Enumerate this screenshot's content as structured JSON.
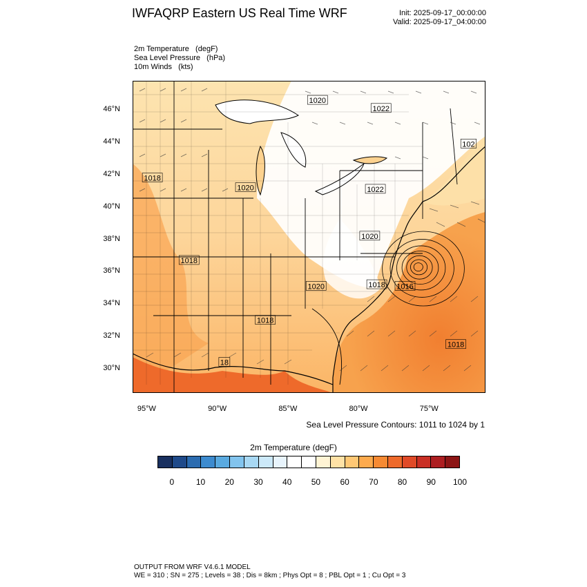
{
  "header": {
    "title": "IWFAQRP Eastern US Real Time WRF",
    "init": "Init: 2025-09-17_00:00:00",
    "valid": "Valid: 2025-09-17_04:00:00"
  },
  "fields": [
    "2m Temperature   (degF)",
    "Sea Level Pressure   (hPa)",
    "10m Winds   (kts)"
  ],
  "map": {
    "lon_range": [
      -96,
      -71
    ],
    "lat_range": [
      28.5,
      47.8
    ],
    "lat_labels": [
      "46°N",
      "44°N",
      "42°N",
      "40°N",
      "38°N",
      "36°N",
      "34°N",
      "32°N",
      "30°N"
    ],
    "lat_values": [
      46,
      44,
      42,
      40,
      38,
      36,
      34,
      32,
      30
    ],
    "lon_labels": [
      "95°W",
      "90°W",
      "85°W",
      "80°W",
      "75°W"
    ],
    "lon_values": [
      -95,
      -90,
      -85,
      -80,
      -75
    ],
    "pressure_labels": [
      {
        "text": "1020",
        "lon": -82.9,
        "lat": 46.6
      },
      {
        "text": "1022",
        "lon": -78.4,
        "lat": 46.1
      },
      {
        "text": "102",
        "lon": -72.2,
        "lat": 43.9
      },
      {
        "text": "1018",
        "lon": -94.6,
        "lat": 41.8
      },
      {
        "text": "1020",
        "lon": -88.0,
        "lat": 41.2
      },
      {
        "text": "1022",
        "lon": -78.8,
        "lat": 41.1
      },
      {
        "text": "1020",
        "lon": -79.2,
        "lat": 38.2
      },
      {
        "text": "1018",
        "lon": -92.0,
        "lat": 36.7
      },
      {
        "text": "1020",
        "lon": -83.0,
        "lat": 35.1
      },
      {
        "text": "1018",
        "lon": -78.7,
        "lat": 35.2
      },
      {
        "text": "1016",
        "lon": -76.7,
        "lat": 35.1
      },
      {
        "text": "1018",
        "lon": -86.6,
        "lat": 33.0
      },
      {
        "text": "18",
        "lon": -89.5,
        "lat": 30.4
      },
      {
        "text": "1018",
        "lon": -73.1,
        "lat": 31.5
      }
    ],
    "low_center": {
      "lon": -75.8,
      "lat": 36.3
    }
  },
  "contour_note": "Sea Level Pressure Contours: 1011 to 1024 by 1",
  "colorbar": {
    "title": "2m Temperature  (degF)",
    "colors": [
      "#19305f",
      "#1f4a8a",
      "#2c6cb0",
      "#3d8bcf",
      "#5aaae0",
      "#82c4ee",
      "#a8d8f3",
      "#cce9f9",
      "#e8f4fc",
      "#ffffff",
      "#ffffff",
      "#fff4d4",
      "#ffe2a6",
      "#ffc875",
      "#fdaa4d",
      "#f68a33",
      "#ee6a2b",
      "#e04a28",
      "#c92f25",
      "#ad1e21",
      "#8c1515"
    ],
    "tick_labels": [
      "0",
      "10",
      "20",
      "30",
      "40",
      "50",
      "60",
      "70",
      "80",
      "90",
      "100"
    ]
  },
  "footer": {
    "line1": "OUTPUT FROM WRF V4.6.1 MODEL",
    "line2": "WE = 310 ; SN = 275 ; Levels = 38 ; Dis = 8km ; Phys Opt = 8 ; PBL Opt = 1 ; Cu Opt = 3"
  }
}
